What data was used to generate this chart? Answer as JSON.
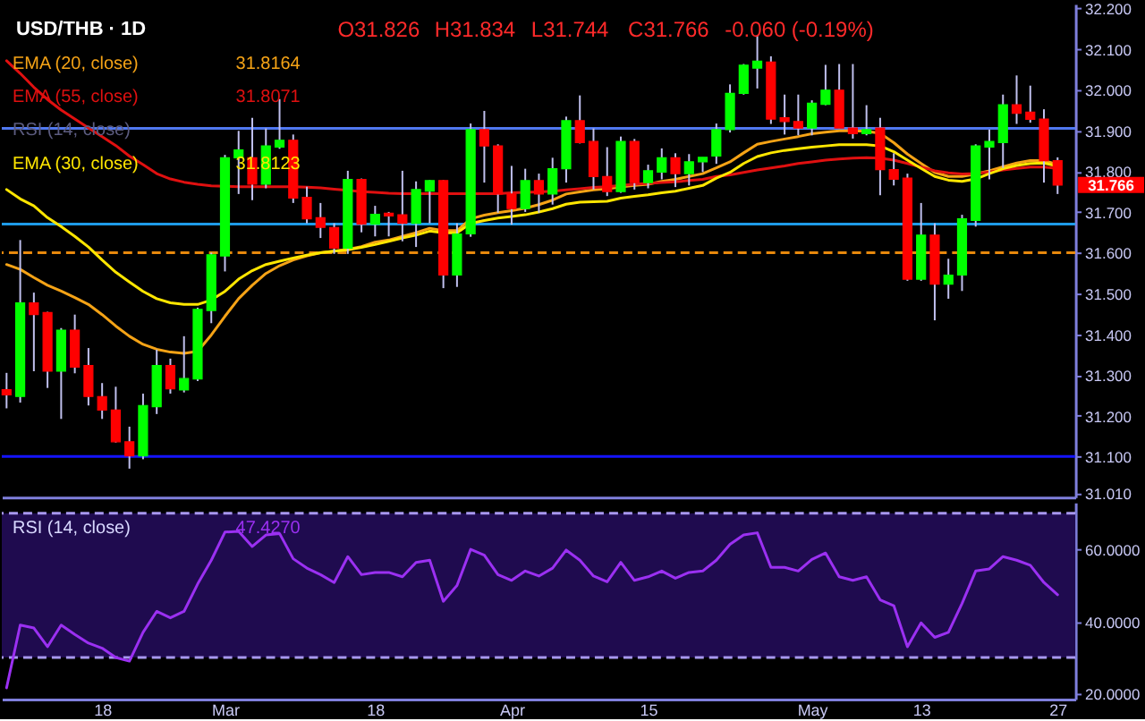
{
  "chart_data": [
    {
      "type": "candlestick",
      "title": "USD/THB · 1D",
      "annotations": [
        "O31.826",
        "H31.834",
        "L31.744",
        "C31.766",
        "-0.060 (-0.19%)",
        "RSI (14, close)",
        "31.8164",
        "31.8071",
        "31.8123",
        "31.766"
      ],
      "categories": [
        null,
        null,
        null,
        null,
        null,
        null,
        null,
        null,
        null,
        null,
        null,
        null,
        null,
        null,
        null,
        null,
        null,
        null,
        null,
        null,
        null,
        null,
        null,
        null,
        null,
        null,
        null,
        null,
        null,
        null,
        null,
        null,
        null,
        null,
        null,
        null,
        null,
        null,
        null,
        null,
        null,
        null,
        null,
        null,
        null,
        null,
        null,
        null,
        null,
        null,
        null,
        null,
        null,
        null,
        null,
        null,
        null,
        null,
        null,
        null,
        null,
        null,
        null,
        null,
        null,
        null,
        null,
        null,
        null,
        null,
        null,
        null,
        null,
        null,
        null,
        null,
        null,
        null
      ],
      "ohlc": [
        [
          31.264,
          31.305,
          31.218,
          31.251
        ],
        [
          31.247,
          31.631,
          31.232,
          31.477
        ],
        [
          31.477,
          31.502,
          31.309,
          31.448
        ],
        [
          31.453,
          31.455,
          31.268,
          31.309
        ],
        [
          31.309,
          31.415,
          31.192,
          31.41
        ],
        [
          31.41,
          31.448,
          31.304,
          31.319
        ],
        [
          31.323,
          31.366,
          31.225,
          31.247
        ],
        [
          31.247,
          31.28,
          31.192,
          31.214
        ],
        [
          31.214,
          31.271,
          31.134,
          31.136
        ],
        [
          31.136,
          31.173,
          31.07,
          31.101
        ],
        [
          31.101,
          31.254,
          31.093,
          31.225
        ],
        [
          31.222,
          31.362,
          31.204,
          31.323
        ],
        [
          31.323,
          31.34,
          31.254,
          31.266
        ],
        [
          31.263,
          31.395,
          31.257,
          31.291
        ],
        [
          31.29,
          31.465,
          31.285,
          31.461
        ],
        [
          31.458,
          31.6,
          31.427,
          31.595
        ],
        [
          31.592,
          31.84,
          31.554,
          31.833
        ],
        [
          31.833,
          31.899,
          31.744,
          31.852
        ],
        [
          31.833,
          31.931,
          31.729,
          31.768
        ],
        [
          31.768,
          31.905,
          31.758,
          31.862
        ],
        [
          31.859,
          31.977,
          31.855,
          31.876
        ],
        [
          31.876,
          31.89,
          31.722,
          31.734
        ],
        [
          31.736,
          31.762,
          31.672,
          31.683
        ],
        [
          31.686,
          31.722,
          31.636,
          31.662
        ],
        [
          31.662,
          31.672,
          31.597,
          31.611
        ],
        [
          31.611,
          31.801,
          31.597,
          31.78
        ],
        [
          31.78,
          31.782,
          31.65,
          31.67
        ],
        [
          31.67,
          31.715,
          31.64,
          31.694
        ],
        [
          31.697,
          31.7,
          31.64,
          31.69
        ],
        [
          31.693,
          31.801,
          31.628,
          31.672
        ],
        [
          31.672,
          31.775,
          31.614,
          31.755
        ],
        [
          31.751,
          31.778,
          31.672,
          31.777
        ],
        [
          31.777,
          31.778,
          31.513,
          31.545
        ],
        [
          31.545,
          31.672,
          31.516,
          31.646
        ],
        [
          31.646,
          31.917,
          31.639,
          31.902
        ],
        [
          31.902,
          31.948,
          31.772,
          31.862
        ],
        [
          31.862,
          31.866,
          31.698,
          31.744
        ],
        [
          31.744,
          31.813,
          31.669,
          31.708
        ],
        [
          31.708,
          31.806,
          31.7,
          31.777
        ],
        [
          31.777,
          31.794,
          31.698,
          31.744
        ],
        [
          31.744,
          31.833,
          31.718,
          31.806
        ],
        [
          31.806,
          31.934,
          31.772,
          31.924
        ],
        [
          31.924,
          31.986,
          31.868,
          31.87
        ],
        [
          31.873,
          31.905,
          31.755,
          31.787
        ],
        [
          31.787,
          31.859,
          31.739,
          31.75
        ],
        [
          31.75,
          31.885,
          31.747,
          31.873
        ],
        [
          31.873,
          31.879,
          31.755,
          31.772
        ],
        [
          31.772,
          31.816,
          31.758,
          31.801
        ],
        [
          31.798,
          31.856,
          31.78,
          31.833
        ],
        [
          31.833,
          31.844,
          31.761,
          31.794
        ],
        [
          31.794,
          31.842,
          31.765,
          31.823
        ],
        [
          31.823,
          31.834,
          31.798,
          31.834
        ],
        [
          31.837,
          31.917,
          31.818,
          31.902
        ],
        [
          31.902,
          32.013,
          31.895,
          31.991
        ],
        [
          31.991,
          32.063,
          31.988,
          32.06
        ],
        [
          32.053,
          32.132,
          32.003,
          32.07
        ],
        [
          32.068,
          32.082,
          31.916,
          31.928
        ],
        [
          31.931,
          31.988,
          31.89,
          31.922
        ],
        [
          31.922,
          31.988,
          31.888,
          31.906
        ],
        [
          31.906,
          31.974,
          31.888,
          31.967
        ],
        [
          31.964,
          32.061,
          31.962,
          31.999
        ],
        [
          31.999,
          32.063,
          31.905,
          31.906
        ],
        [
          31.906,
          32.063,
          31.88,
          31.892
        ],
        [
          31.892,
          31.962,
          31.888,
          31.902
        ],
        [
          31.906,
          31.931,
          31.741,
          31.804
        ],
        [
          31.804,
          31.844,
          31.765,
          31.78
        ],
        [
          31.783,
          31.794,
          31.531,
          31.535
        ],
        [
          31.535,
          31.722,
          31.531,
          31.643
        ],
        [
          31.643,
          31.672,
          31.434,
          31.523
        ],
        [
          31.523,
          31.585,
          31.487,
          31.545
        ],
        [
          31.545,
          31.693,
          31.506,
          31.683
        ],
        [
          31.679,
          31.866,
          31.664,
          31.862
        ],
        [
          31.859,
          31.902,
          31.78,
          31.873
        ],
        [
          31.87,
          31.988,
          31.808,
          31.963
        ],
        [
          31.963,
          32.035,
          31.916,
          31.942
        ],
        [
          31.945,
          32.01,
          31.919,
          31.927
        ],
        [
          31.928,
          31.952,
          31.772,
          31.826
        ],
        [
          31.826,
          31.834,
          31.744,
          31.766
        ]
      ],
      "colors": [
        "#ff0000",
        "#00ff00",
        "#ff0000",
        "#ff0000",
        "#00ff00",
        "#ff0000",
        "#ff0000",
        "#ff0000",
        "#ff0000",
        "#ff0000",
        "#00ff00",
        "#00ff00",
        "#ff0000",
        "#00ff00",
        "#00ff00",
        "#00ff00",
        "#00ff00",
        "#00ff00",
        "#ff0000",
        "#00ff00",
        "#00ff00",
        "#ff0000",
        "#ff0000",
        "#ff0000",
        "#ff0000",
        "#00ff00",
        "#ff0000",
        "#00ff00",
        "#ff0000",
        "#ff0000",
        "#00ff00",
        "#00ff00",
        "#ff0000",
        "#00ff00",
        "#00ff00",
        "#ff0000",
        "#ff0000",
        "#ff0000",
        "#00ff00",
        "#ff0000",
        "#00ff00",
        "#00ff00",
        "#ff0000",
        "#ff0000",
        "#ff0000",
        "#00ff00",
        "#ff0000",
        "#00ff00",
        "#00ff00",
        "#ff0000",
        "#00ff00",
        "#00ff00",
        "#00ff00",
        "#00ff00",
        "#00ff00",
        "#00ff00",
        "#ff0000",
        "#ff0000",
        "#ff0000",
        "#00ff00",
        "#00ff00",
        "#ff0000",
        "#ff0000",
        "#00ff00",
        "#ff0000",
        "#ff0000",
        "#ff0000",
        "#00ff00",
        "#ff0000",
        "#00ff00",
        "#00ff00",
        "#00ff00",
        "#00ff00",
        "#00ff00",
        "#ff0000",
        "#ff0000",
        "#ff0000",
        "#ff0000"
      ],
      "series": [
        {
          "name": "EMA (20, close)",
          "type": "line",
          "color": "#f5a316",
          "values": [
            31.571,
            31.559,
            31.539,
            31.52,
            31.506,
            31.49,
            31.473,
            31.448,
            31.42,
            31.395,
            31.375,
            31.363,
            31.356,
            31.353,
            31.358,
            31.398,
            31.444,
            31.487,
            31.52,
            31.549,
            31.568,
            31.582,
            31.592,
            31.6,
            31.604,
            31.608,
            31.615,
            31.626,
            31.631,
            31.64,
            31.649,
            31.66,
            31.654,
            31.654,
            31.683,
            31.692,
            31.698,
            31.703,
            31.709,
            31.718,
            31.729,
            31.744,
            31.749,
            31.754,
            31.757,
            31.761,
            31.765,
            31.768,
            31.775,
            31.78,
            31.787,
            31.794,
            31.808,
            31.823,
            31.845,
            31.866,
            31.873,
            31.879,
            31.885,
            31.892,
            31.896,
            31.899,
            31.899,
            31.898,
            31.893,
            31.87,
            31.842,
            31.819,
            31.797,
            31.787,
            31.787,
            31.793,
            31.801,
            31.811,
            31.82,
            31.826,
            31.826,
            31.8164
          ]
        },
        {
          "name": "EMA (55, close)",
          "type": "line",
          "color": "#e01010",
          "values": [
            32.071,
            32.04,
            32.006,
            31.976,
            31.95,
            31.928,
            31.906,
            31.885,
            31.863,
            31.837,
            31.816,
            31.794,
            31.781,
            31.773,
            31.768,
            31.764,
            31.763,
            31.762,
            31.762,
            31.762,
            31.762,
            31.762,
            31.761,
            31.759,
            31.756,
            31.753,
            31.75,
            31.748,
            31.746,
            31.745,
            31.745,
            31.745,
            31.745,
            31.745,
            31.745,
            31.745,
            31.745,
            31.747,
            31.748,
            31.749,
            31.751,
            31.754,
            31.757,
            31.76,
            31.762,
            31.765,
            31.768,
            31.77,
            31.772,
            31.774,
            31.777,
            31.78,
            31.787,
            31.791,
            31.797,
            31.803,
            31.808,
            31.813,
            31.819,
            31.823,
            31.827,
            31.83,
            31.832,
            31.833,
            31.832,
            31.827,
            31.819,
            31.81,
            31.801,
            31.796,
            31.793,
            31.794,
            31.798,
            31.803,
            31.807,
            31.81,
            31.81,
            31.8071
          ]
        },
        {
          "name": "EMA (30, close)",
          "type": "line",
          "color": "#ffe600",
          "values": [
            31.755,
            31.732,
            31.715,
            31.686,
            31.664,
            31.64,
            31.614,
            31.582,
            31.552,
            31.528,
            31.505,
            31.487,
            31.477,
            31.473,
            31.473,
            31.484,
            31.505,
            31.535,
            31.556,
            31.571,
            31.579,
            31.587,
            31.594,
            31.6,
            31.604,
            31.607,
            31.613,
            31.62,
            31.628,
            31.636,
            31.643,
            31.653,
            31.649,
            31.649,
            31.672,
            31.679,
            31.685,
            31.689,
            31.693,
            31.7,
            31.708,
            31.719,
            31.724,
            31.725,
            31.726,
            31.734,
            31.738,
            31.742,
            31.747,
            31.751,
            31.758,
            31.765,
            31.783,
            31.797,
            31.819,
            31.836,
            31.845,
            31.851,
            31.855,
            31.859,
            31.862,
            31.865,
            31.865,
            31.865,
            31.862,
            31.848,
            31.827,
            31.807,
            31.787,
            31.778,
            31.775,
            31.781,
            31.794,
            31.806,
            31.814,
            31.819,
            31.82,
            31.8123
          ]
        }
      ],
      "ylim": [
        31.0,
        32.21
      ],
      "yticks": [
        {
          "value": 31.01,
          "label": "31.010"
        },
        {
          "value": 31.1,
          "label": "31.100"
        },
        {
          "value": 31.2,
          "label": "31.200"
        },
        {
          "value": 31.3,
          "label": "31.300"
        },
        {
          "value": 31.4,
          "label": "31.400"
        },
        {
          "value": 31.5,
          "label": "31.500"
        },
        {
          "value": 31.6,
          "label": "31.600"
        },
        {
          "value": 31.7,
          "label": "31.700"
        },
        {
          "value": 31.8,
          "label": "31.800"
        },
        {
          "value": 31.9,
          "label": "31.900"
        },
        {
          "value": 32.0,
          "label": "32.000"
        },
        {
          "value": 32.1,
          "label": "32.100"
        },
        {
          "value": 32.2,
          "label": "32.200"
        }
      ],
      "ref_lines": [
        {
          "axis": "y",
          "value": 31.905,
          "color": "#5078f0"
        },
        {
          "axis": "y",
          "value": 31.67,
          "color": "#1e9be8"
        },
        {
          "axis": "y",
          "value": 31.6,
          "color": "#e8890c",
          "line_style": "dashed"
        },
        {
          "axis": "y",
          "value": 31.1,
          "color": "#1414ff"
        }
      ],
      "legend": "top left"
    },
    {
      "type": "line",
      "annotations": [
        "47.4270"
      ],
      "categories": [
        null,
        null,
        null,
        null,
        null,
        null,
        null,
        "18",
        null,
        null,
        null,
        null,
        null,
        null,
        null,
        null,
        "Mar",
        null,
        null,
        null,
        null,
        null,
        null,
        null,
        null,
        null,
        null,
        "18",
        null,
        null,
        null,
        null,
        null,
        null,
        null,
        null,
        null,
        "Apr",
        null,
        null,
        null,
        null,
        null,
        null,
        null,
        null,
        null,
        "15",
        null,
        null,
        null,
        null,
        null,
        null,
        null,
        null,
        null,
        null,
        null,
        "May",
        null,
        null,
        null,
        null,
        null,
        null,
        null,
        "13",
        null,
        null,
        null,
        null,
        null,
        null,
        null,
        null,
        null,
        "27"
      ],
      "series": [
        {
          "name": "RSI (14, close)",
          "color": "#9b30f2",
          "values": [
            21.6,
            39.0,
            38.2,
            33.0,
            39.0,
            36.4,
            34.0,
            32.6,
            30.0,
            29.0,
            37.0,
            42.8,
            41.0,
            42.8,
            50.4,
            57.0,
            64.8,
            65.0,
            60.8,
            64.0,
            64.4,
            57.4,
            54.8,
            53.0,
            50.8,
            58.0,
            53.0,
            53.6,
            53.6,
            52.4,
            56.4,
            57.0,
            45.6,
            50.0,
            60.0,
            58.4,
            53.0,
            51.4,
            54.0,
            52.6,
            54.8,
            59.8,
            57.0,
            52.6,
            51.0,
            56.4,
            51.4,
            52.4,
            54.0,
            52.0,
            53.6,
            54.0,
            57.0,
            61.4,
            64.0,
            64.6,
            55.0,
            55.0,
            54.0,
            57.2,
            59.0,
            52.4,
            51.4,
            52.4,
            46.0,
            44.4,
            33.0,
            39.6,
            35.6,
            37.0,
            45.0,
            54.0,
            54.6,
            58.0,
            57.0,
            55.6,
            50.8,
            47.427
          ]
        }
      ],
      "ylim": [
        18.5,
        73
      ],
      "yticks": [
        {
          "value": 20,
          "label": "20.0000"
        },
        {
          "value": 40,
          "label": "40.0000"
        },
        {
          "value": 60,
          "label": "60.0000"
        }
      ],
      "ref_lines": [
        {
          "axis": "y",
          "value": 70,
          "color": "#a898f0",
          "line_style": "dashed"
        },
        {
          "axis": "y",
          "value": 30,
          "color": "#a898f0",
          "line_style": "dashed"
        }
      ],
      "bands": [
        {
          "axis": "y",
          "from": 30,
          "to": 70,
          "color": "#1f0b4f"
        }
      ],
      "legend": "top left"
    }
  ]
}
